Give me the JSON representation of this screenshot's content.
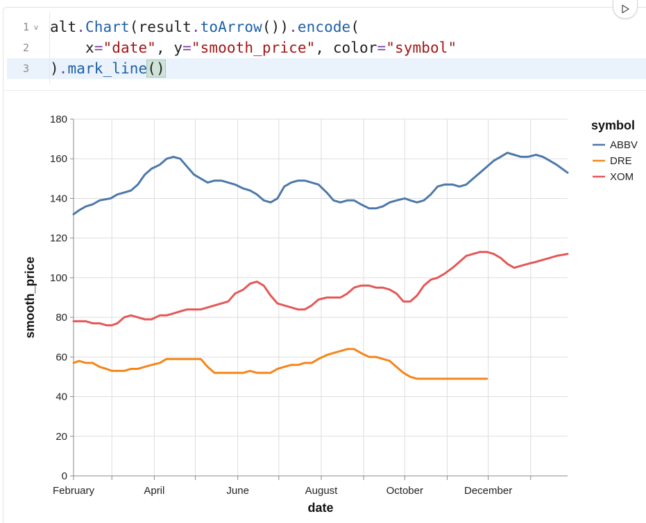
{
  "editor": {
    "lines": [
      {
        "num": "1",
        "fold": "v",
        "tokens": [
          {
            "t": "alt",
            "c": ""
          },
          {
            "t": ".",
            "c": "op"
          },
          {
            "t": "Chart",
            "c": "fn"
          },
          {
            "t": "(result",
            "c": ""
          },
          {
            "t": ".",
            "c": "op"
          },
          {
            "t": "toArrow",
            "c": "fn"
          },
          {
            "t": "())",
            "c": ""
          },
          {
            "t": ".",
            "c": "op"
          },
          {
            "t": "encode",
            "c": "fn"
          },
          {
            "t": "(",
            "c": ""
          }
        ]
      },
      {
        "num": "2",
        "fold": "",
        "tokens": [
          {
            "t": "    x",
            "c": ""
          },
          {
            "t": "=",
            "c": "op"
          },
          {
            "t": "\"date\"",
            "c": "str"
          },
          {
            "t": ", y",
            "c": ""
          },
          {
            "t": "=",
            "c": "op"
          },
          {
            "t": "\"smooth_price\"",
            "c": "str"
          },
          {
            "t": ", color",
            "c": ""
          },
          {
            "t": "=",
            "c": "op"
          },
          {
            "t": "\"symbol\"",
            "c": "str"
          }
        ]
      },
      {
        "num": "3",
        "fold": "",
        "active": true,
        "tokens": [
          {
            "t": ")",
            "c": ""
          },
          {
            "t": ".",
            "c": "op"
          },
          {
            "t": "mark_line",
            "c": "fn"
          },
          {
            "t": "()",
            "c": "br"
          }
        ]
      }
    ]
  },
  "run_button_icon": "play-icon",
  "chart_data": {
    "type": "line",
    "xlabel": "date",
    "ylabel": "smooth_price",
    "ylim": [
      0,
      180
    ],
    "yticks": [
      0,
      20,
      40,
      60,
      80,
      100,
      120,
      140,
      160,
      180
    ],
    "xdomain": [
      "2022-02-01",
      "2023-01-28"
    ],
    "xticks": [
      {
        "date": "2022-02-01",
        "label": "February"
      },
      {
        "date": "2022-04-01",
        "label": "April"
      },
      {
        "date": "2022-06-01",
        "label": "June"
      },
      {
        "date": "2022-08-01",
        "label": "August"
      },
      {
        "date": "2022-10-01",
        "label": "October"
      },
      {
        "date": "2022-12-01",
        "label": "December"
      }
    ],
    "minor_ticks": [
      "2022-03-01",
      "2022-05-01",
      "2022-07-01",
      "2022-09-01",
      "2022-11-01",
      "2023-01-01"
    ],
    "grid": true,
    "legend": {
      "title": "symbol",
      "position": "right"
    },
    "series": [
      {
        "name": "ABBV",
        "color": "#4c78a8",
        "points": [
          [
            "2022-02-01",
            132
          ],
          [
            "2022-02-05",
            134
          ],
          [
            "2022-02-10",
            136
          ],
          [
            "2022-02-15",
            137
          ],
          [
            "2022-02-20",
            139
          ],
          [
            "2022-02-28",
            140
          ],
          [
            "2022-03-05",
            142
          ],
          [
            "2022-03-10",
            143
          ],
          [
            "2022-03-15",
            144
          ],
          [
            "2022-03-20",
            147
          ],
          [
            "2022-03-25",
            152
          ],
          [
            "2022-03-30",
            155
          ],
          [
            "2022-04-05",
            157
          ],
          [
            "2022-04-10",
            160
          ],
          [
            "2022-04-15",
            161
          ],
          [
            "2022-04-20",
            160
          ],
          [
            "2022-04-25",
            156
          ],
          [
            "2022-04-30",
            152
          ],
          [
            "2022-05-05",
            150
          ],
          [
            "2022-05-10",
            148
          ],
          [
            "2022-05-15",
            149
          ],
          [
            "2022-05-20",
            149
          ],
          [
            "2022-05-25",
            148
          ],
          [
            "2022-05-30",
            147
          ],
          [
            "2022-06-05",
            145
          ],
          [
            "2022-06-10",
            144
          ],
          [
            "2022-06-15",
            142
          ],
          [
            "2022-06-20",
            139
          ],
          [
            "2022-06-25",
            138
          ],
          [
            "2022-06-30",
            140
          ],
          [
            "2022-07-05",
            146
          ],
          [
            "2022-07-10",
            148
          ],
          [
            "2022-07-15",
            149
          ],
          [
            "2022-07-20",
            149
          ],
          [
            "2022-07-25",
            148
          ],
          [
            "2022-07-30",
            147
          ],
          [
            "2022-08-05",
            143
          ],
          [
            "2022-08-10",
            139
          ],
          [
            "2022-08-15",
            138
          ],
          [
            "2022-08-20",
            139
          ],
          [
            "2022-08-25",
            139
          ],
          [
            "2022-08-30",
            137
          ],
          [
            "2022-09-05",
            135
          ],
          [
            "2022-09-10",
            135
          ],
          [
            "2022-09-15",
            136
          ],
          [
            "2022-09-20",
            138
          ],
          [
            "2022-09-25",
            139
          ],
          [
            "2022-10-01",
            140
          ],
          [
            "2022-10-05",
            139
          ],
          [
            "2022-10-10",
            138
          ],
          [
            "2022-10-15",
            139
          ],
          [
            "2022-10-20",
            142
          ],
          [
            "2022-10-25",
            146
          ],
          [
            "2022-10-30",
            147
          ],
          [
            "2022-11-05",
            147
          ],
          [
            "2022-11-10",
            146
          ],
          [
            "2022-11-15",
            147
          ],
          [
            "2022-11-20",
            150
          ],
          [
            "2022-11-25",
            153
          ],
          [
            "2022-11-30",
            156
          ],
          [
            "2022-12-05",
            159
          ],
          [
            "2022-12-10",
            161
          ],
          [
            "2022-12-15",
            163
          ],
          [
            "2022-12-20",
            162
          ],
          [
            "2022-12-25",
            161
          ],
          [
            "2022-12-30",
            161
          ],
          [
            "2023-01-05",
            162
          ],
          [
            "2023-01-10",
            161
          ],
          [
            "2023-01-15",
            159
          ],
          [
            "2023-01-20",
            157
          ],
          [
            "2023-01-28",
            153
          ]
        ]
      },
      {
        "name": "DRE",
        "color": "#f58518",
        "points": [
          [
            "2022-02-01",
            57
          ],
          [
            "2022-02-05",
            58
          ],
          [
            "2022-02-10",
            57
          ],
          [
            "2022-02-15",
            57
          ],
          [
            "2022-02-20",
            55
          ],
          [
            "2022-02-25",
            54
          ],
          [
            "2022-03-01",
            53
          ],
          [
            "2022-03-05",
            53
          ],
          [
            "2022-03-10",
            53
          ],
          [
            "2022-03-15",
            54
          ],
          [
            "2022-03-20",
            54
          ],
          [
            "2022-03-25",
            55
          ],
          [
            "2022-03-30",
            56
          ],
          [
            "2022-04-05",
            57
          ],
          [
            "2022-04-10",
            59
          ],
          [
            "2022-04-15",
            59
          ],
          [
            "2022-04-20",
            59
          ],
          [
            "2022-04-25",
            59
          ],
          [
            "2022-04-30",
            59
          ],
          [
            "2022-05-05",
            59
          ],
          [
            "2022-05-10",
            55
          ],
          [
            "2022-05-15",
            52
          ],
          [
            "2022-05-20",
            52
          ],
          [
            "2022-05-25",
            52
          ],
          [
            "2022-05-30",
            52
          ],
          [
            "2022-06-05",
            52
          ],
          [
            "2022-06-10",
            53
          ],
          [
            "2022-06-15",
            52
          ],
          [
            "2022-06-20",
            52
          ],
          [
            "2022-06-25",
            52
          ],
          [
            "2022-06-30",
            54
          ],
          [
            "2022-07-05",
            55
          ],
          [
            "2022-07-10",
            56
          ],
          [
            "2022-07-15",
            56
          ],
          [
            "2022-07-20",
            57
          ],
          [
            "2022-07-25",
            57
          ],
          [
            "2022-07-30",
            59
          ],
          [
            "2022-08-05",
            61
          ],
          [
            "2022-08-10",
            62
          ],
          [
            "2022-08-15",
            63
          ],
          [
            "2022-08-20",
            64
          ],
          [
            "2022-08-25",
            64
          ],
          [
            "2022-08-30",
            62
          ],
          [
            "2022-09-05",
            60
          ],
          [
            "2022-09-10",
            60
          ],
          [
            "2022-09-15",
            59
          ],
          [
            "2022-09-20",
            58
          ],
          [
            "2022-09-25",
            55
          ],
          [
            "2022-09-30",
            52
          ],
          [
            "2022-10-05",
            50
          ],
          [
            "2022-10-10",
            49
          ],
          [
            "2022-10-20",
            49
          ],
          [
            "2022-11-01",
            49
          ],
          [
            "2022-11-15",
            49
          ],
          [
            "2022-11-30",
            49
          ]
        ]
      },
      {
        "name": "XOM",
        "color": "#e45756",
        "points": [
          [
            "2022-02-01",
            78
          ],
          [
            "2022-02-05",
            78
          ],
          [
            "2022-02-10",
            78
          ],
          [
            "2022-02-15",
            77
          ],
          [
            "2022-02-20",
            77
          ],
          [
            "2022-02-25",
            76
          ],
          [
            "2022-03-01",
            76
          ],
          [
            "2022-03-05",
            77
          ],
          [
            "2022-03-10",
            80
          ],
          [
            "2022-03-15",
            81
          ],
          [
            "2022-03-20",
            80
          ],
          [
            "2022-03-25",
            79
          ],
          [
            "2022-03-30",
            79
          ],
          [
            "2022-04-05",
            81
          ],
          [
            "2022-04-10",
            81
          ],
          [
            "2022-04-15",
            82
          ],
          [
            "2022-04-20",
            83
          ],
          [
            "2022-04-25",
            84
          ],
          [
            "2022-04-30",
            84
          ],
          [
            "2022-05-05",
            84
          ],
          [
            "2022-05-10",
            85
          ],
          [
            "2022-05-15",
            86
          ],
          [
            "2022-05-20",
            87
          ],
          [
            "2022-05-25",
            88
          ],
          [
            "2022-05-30",
            92
          ],
          [
            "2022-06-05",
            94
          ],
          [
            "2022-06-10",
            97
          ],
          [
            "2022-06-15",
            98
          ],
          [
            "2022-06-20",
            96
          ],
          [
            "2022-06-25",
            91
          ],
          [
            "2022-06-30",
            87
          ],
          [
            "2022-07-05",
            86
          ],
          [
            "2022-07-10",
            85
          ],
          [
            "2022-07-15",
            84
          ],
          [
            "2022-07-20",
            84
          ],
          [
            "2022-07-25",
            86
          ],
          [
            "2022-07-30",
            89
          ],
          [
            "2022-08-05",
            90
          ],
          [
            "2022-08-10",
            90
          ],
          [
            "2022-08-15",
            90
          ],
          [
            "2022-08-20",
            92
          ],
          [
            "2022-08-25",
            95
          ],
          [
            "2022-08-30",
            96
          ],
          [
            "2022-09-05",
            96
          ],
          [
            "2022-09-10",
            95
          ],
          [
            "2022-09-15",
            95
          ],
          [
            "2022-09-20",
            94
          ],
          [
            "2022-09-25",
            92
          ],
          [
            "2022-09-30",
            88
          ],
          [
            "2022-10-05",
            88
          ],
          [
            "2022-10-10",
            91
          ],
          [
            "2022-10-15",
            96
          ],
          [
            "2022-10-20",
            99
          ],
          [
            "2022-10-25",
            100
          ],
          [
            "2022-10-30",
            102
          ],
          [
            "2022-11-05",
            105
          ],
          [
            "2022-11-10",
            108
          ],
          [
            "2022-11-15",
            111
          ],
          [
            "2022-11-20",
            112
          ],
          [
            "2022-11-25",
            113
          ],
          [
            "2022-11-30",
            113
          ],
          [
            "2022-12-05",
            112
          ],
          [
            "2022-12-10",
            110
          ],
          [
            "2022-12-15",
            107
          ],
          [
            "2022-12-20",
            105
          ],
          [
            "2022-12-25",
            106
          ],
          [
            "2022-12-30",
            107
          ],
          [
            "2023-01-05",
            108
          ],
          [
            "2023-01-10",
            109
          ],
          [
            "2023-01-15",
            110
          ],
          [
            "2023-01-20",
            111
          ],
          [
            "2023-01-28",
            112
          ]
        ]
      }
    ]
  }
}
